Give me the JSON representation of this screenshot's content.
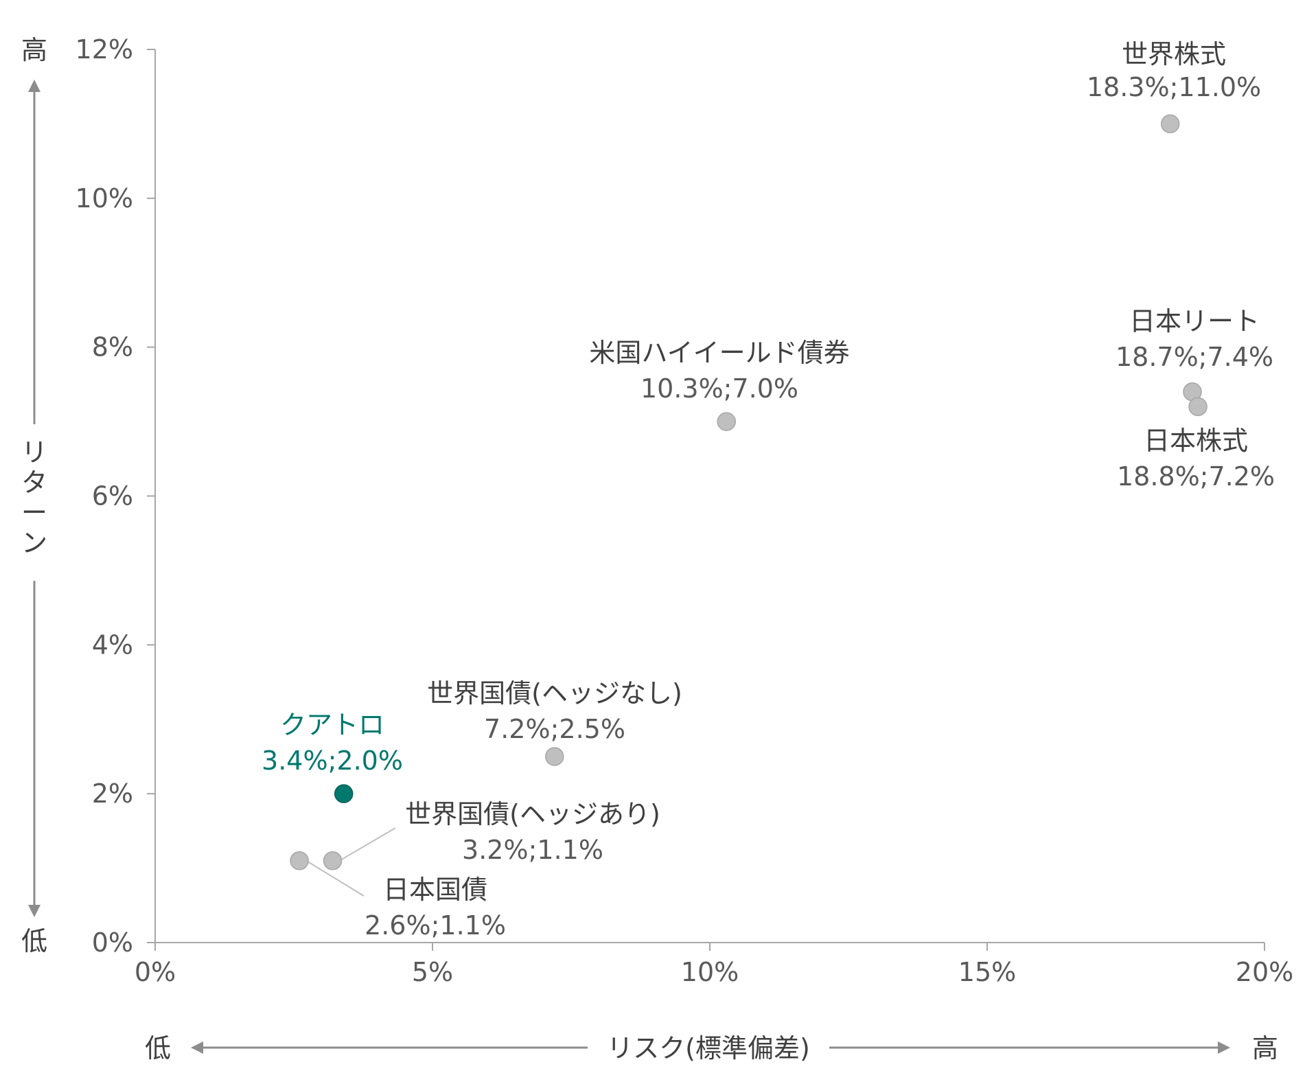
{
  "chart_data": {
    "type": "scatter",
    "title": "",
    "xlabel": "リスク(標準偏差)",
    "ylabel": "リターン",
    "xlim": [
      0,
      20
    ],
    "ylim": [
      0,
      12
    ],
    "x_ticks": [
      "0%",
      "5%",
      "10%",
      "15%",
      "20%"
    ],
    "y_ticks": [
      "0%",
      "2%",
      "4%",
      "6%",
      "8%",
      "10%",
      "12%"
    ],
    "x_low_label": "低",
    "x_high_label": "高",
    "y_low_label": "低",
    "y_high_label": "高",
    "grid": false,
    "colors": {
      "default_point": "#bfbfbf",
      "highlight_point": "#00786e",
      "axis": "#a6a6a6"
    },
    "points": [
      {
        "name": "世界株式",
        "label": "18.3%;11.0%",
        "x": 18.3,
        "y": 11.0,
        "highlight": false
      },
      {
        "name": "日本リート",
        "label": "18.7%;7.4%",
        "x": 18.7,
        "y": 7.4,
        "highlight": false
      },
      {
        "name": "日本株式",
        "label": "18.8%;7.2%",
        "x": 18.8,
        "y": 7.2,
        "highlight": false
      },
      {
        "name": "米国ハイイールド債券",
        "label": "10.3%;7.0%",
        "x": 10.3,
        "y": 7.0,
        "highlight": false
      },
      {
        "name": "世界国債(ヘッジなし)",
        "label": "7.2%;2.5%",
        "x": 7.2,
        "y": 2.5,
        "highlight": false
      },
      {
        "name": "クアトロ",
        "label": "3.4%;2.0%",
        "x": 3.4,
        "y": 2.0,
        "highlight": true
      },
      {
        "name": "世界国債(ヘッジあり)",
        "label": "3.2%;1.1%",
        "x": 3.2,
        "y": 1.1,
        "highlight": false
      },
      {
        "name": "日本国債",
        "label": "2.6%;1.1%",
        "x": 2.6,
        "y": 1.1,
        "highlight": false
      }
    ]
  }
}
